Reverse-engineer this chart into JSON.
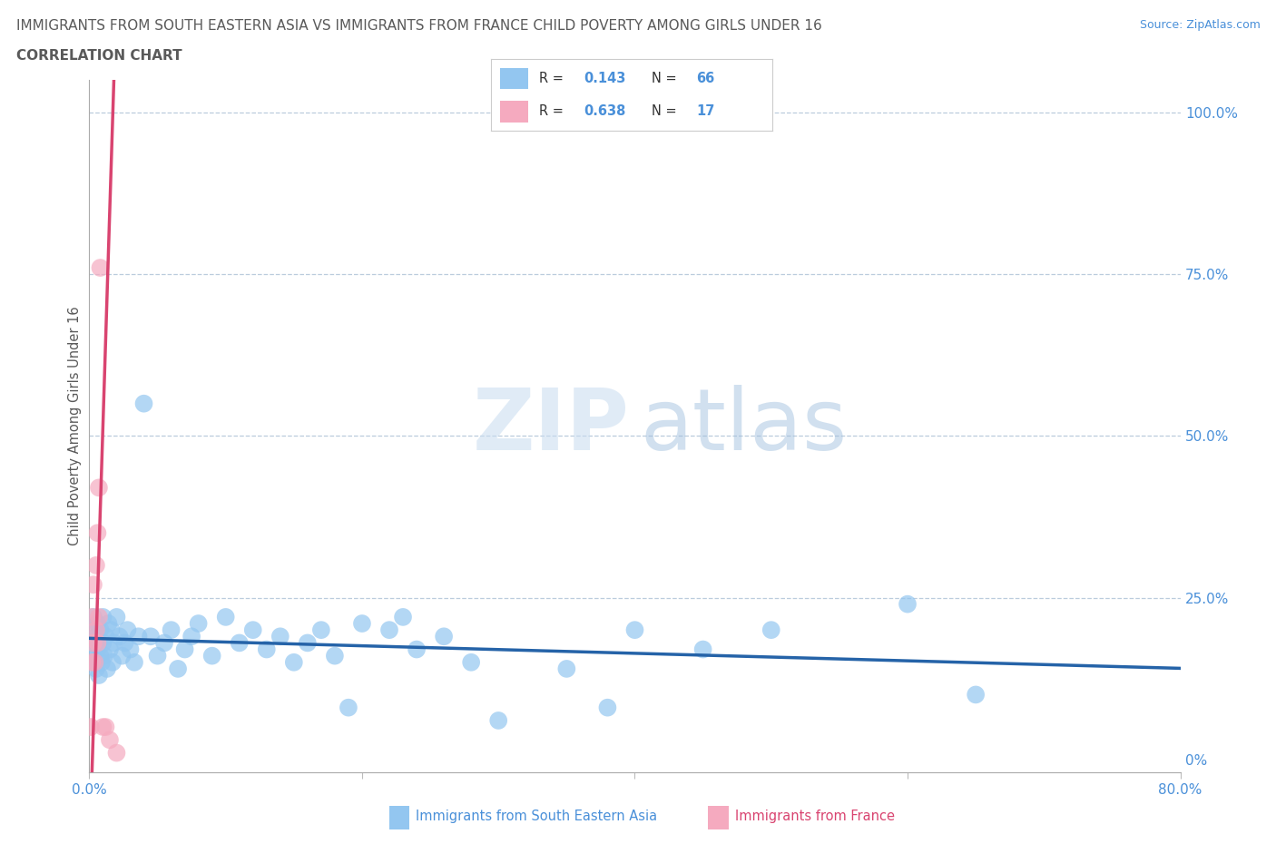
{
  "title_line1": "IMMIGRANTS FROM SOUTH EASTERN ASIA VS IMMIGRANTS FROM FRANCE CHILD POVERTY AMONG GIRLS UNDER 16",
  "title_line2": "CORRELATION CHART",
  "source_text": "Source: ZipAtlas.com",
  "ylabel": "Child Poverty Among Girls Under 16",
  "xlabel_blue": "Immigrants from South Eastern Asia",
  "xlabel_pink": "Immigrants from France",
  "xlim": [
    0.0,
    0.8
  ],
  "ylim": [
    -0.02,
    1.05
  ],
  "xticks": [
    0.0,
    0.2,
    0.4,
    0.6,
    0.8
  ],
  "xtick_labels": [
    "0.0%",
    "",
    "",
    "",
    "80.0%"
  ],
  "yticks": [
    0.0,
    0.25,
    0.5,
    0.75,
    1.0
  ],
  "ytick_labels_right": [
    "0%",
    "25.0%",
    "50.0%",
    "75.0%",
    "100.0%"
  ],
  "blue_color": "#93C6F0",
  "pink_color": "#F5AABF",
  "blue_line_color": "#2563A8",
  "pink_line_color": "#D94470",
  "title_color": "#5A5A5A",
  "axis_label_color": "#4A90D9",
  "legend_text_color": "#333333",
  "r_blue": "0.143",
  "n_blue": "66",
  "r_pink": "0.638",
  "n_pink": "17",
  "grid_color": "#BBCCDD",
  "background_color": "#FFFFFF",
  "blue_x": [
    0.002,
    0.003,
    0.003,
    0.004,
    0.004,
    0.005,
    0.005,
    0.006,
    0.006,
    0.007,
    0.007,
    0.008,
    0.008,
    0.009,
    0.01,
    0.01,
    0.011,
    0.012,
    0.013,
    0.014,
    0.015,
    0.016,
    0.017,
    0.018,
    0.02,
    0.022,
    0.024,
    0.026,
    0.028,
    0.03,
    0.033,
    0.036,
    0.04,
    0.045,
    0.05,
    0.055,
    0.06,
    0.065,
    0.07,
    0.075,
    0.08,
    0.09,
    0.1,
    0.11,
    0.12,
    0.13,
    0.14,
    0.15,
    0.16,
    0.17,
    0.18,
    0.19,
    0.2,
    0.22,
    0.23,
    0.24,
    0.26,
    0.28,
    0.3,
    0.35,
    0.38,
    0.4,
    0.45,
    0.5,
    0.6,
    0.65
  ],
  "blue_y": [
    0.18,
    0.22,
    0.16,
    0.15,
    0.2,
    0.14,
    0.19,
    0.17,
    0.21,
    0.13,
    0.18,
    0.16,
    0.2,
    0.15,
    0.18,
    0.22,
    0.16,
    0.19,
    0.14,
    0.21,
    0.17,
    0.2,
    0.15,
    0.18,
    0.22,
    0.19,
    0.16,
    0.18,
    0.2,
    0.17,
    0.15,
    0.19,
    0.55,
    0.19,
    0.16,
    0.18,
    0.2,
    0.14,
    0.17,
    0.19,
    0.21,
    0.16,
    0.22,
    0.18,
    0.2,
    0.17,
    0.19,
    0.15,
    0.18,
    0.2,
    0.16,
    0.08,
    0.21,
    0.2,
    0.22,
    0.17,
    0.19,
    0.15,
    0.06,
    0.14,
    0.08,
    0.2,
    0.17,
    0.2,
    0.24,
    0.1
  ],
  "pink_x": [
    0.001,
    0.002,
    0.002,
    0.003,
    0.003,
    0.004,
    0.005,
    0.005,
    0.006,
    0.006,
    0.007,
    0.007,
    0.008,
    0.01,
    0.012,
    0.015,
    0.02
  ],
  "pink_y": [
    0.05,
    0.15,
    0.22,
    0.18,
    0.27,
    0.15,
    0.2,
    0.3,
    0.18,
    0.35,
    0.22,
    0.42,
    0.76,
    0.05,
    0.05,
    0.03,
    0.01
  ],
  "pink_line_x0": 0.0,
  "pink_line_x1": 0.025,
  "blue_line_x0": 0.0,
  "blue_line_x1": 0.8
}
